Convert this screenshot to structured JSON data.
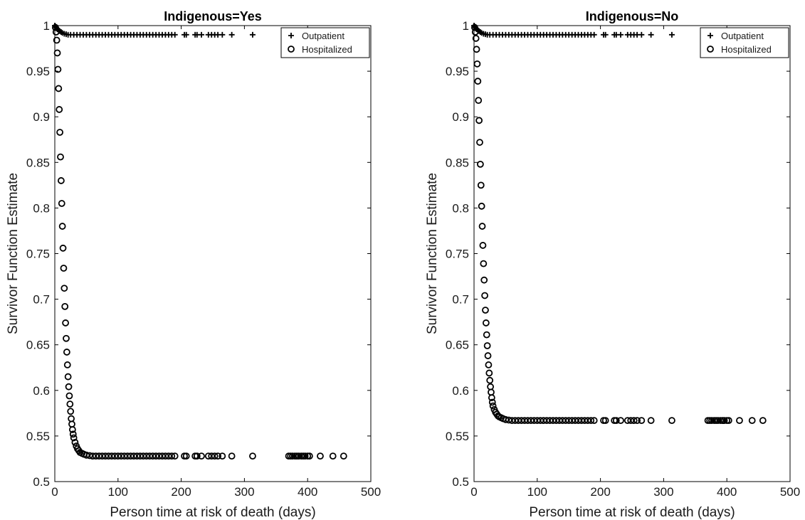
{
  "chart_data": [
    {
      "type": "scatter",
      "title": "Indigenous=Yes",
      "xlabel": "Person time at risk of death (days)",
      "ylabel": "Survivor Function Estimate",
      "xlim": [
        0,
        500
      ],
      "ylim": [
        0.5,
        1
      ],
      "xticks": [
        0,
        100,
        200,
        300,
        400,
        500
      ],
      "yticks": [
        0.5,
        0.55,
        0.6,
        0.65,
        0.7,
        0.75,
        0.8,
        0.85,
        0.9,
        0.95,
        1
      ],
      "xtick_labels": [
        "0",
        "100",
        "200",
        "300",
        "400",
        "500"
      ],
      "ytick_labels": [
        "0.5",
        "0.55",
        "0.6",
        "0.65",
        "0.7",
        "0.75",
        "0.8",
        "0.85",
        "0.9",
        "0.95",
        "1"
      ],
      "grid": false,
      "legend_position": "top-right",
      "series": [
        {
          "name": "Outpatient",
          "marker": "plus",
          "x": [
            0,
            1,
            2,
            3,
            4,
            6,
            8,
            10,
            12,
            15,
            18,
            21,
            25,
            30,
            35,
            40,
            45,
            50,
            55,
            60,
            65,
            70,
            75,
            80,
            85,
            90,
            95,
            100,
            105,
            110,
            115,
            120,
            125,
            130,
            135,
            140,
            145,
            150,
            155,
            160,
            165,
            170,
            175,
            180,
            185,
            190,
            205,
            208,
            222,
            225,
            232,
            243,
            248,
            253,
            258,
            265,
            280,
            313
          ],
          "y": [
            1,
            0.999,
            0.998,
            0.997,
            0.996,
            0.995,
            0.994,
            0.993,
            0.992,
            0.991,
            0.9905,
            0.99,
            0.99,
            0.99,
            0.99,
            0.99,
            0.99,
            0.99,
            0.99,
            0.99,
            0.99,
            0.99,
            0.99,
            0.99,
            0.99,
            0.99,
            0.99,
            0.99,
            0.99,
            0.99,
            0.99,
            0.99,
            0.99,
            0.99,
            0.99,
            0.99,
            0.99,
            0.99,
            0.99,
            0.99,
            0.99,
            0.99,
            0.99,
            0.99,
            0.99,
            0.99,
            0.99,
            0.99,
            0.99,
            0.99,
            0.99,
            0.99,
            0.99,
            0.99,
            0.99,
            0.99,
            0.99,
            0.99
          ]
        },
        {
          "name": "Hospitalized",
          "marker": "circle",
          "x": [
            1,
            2,
            3,
            4,
            5,
            6,
            7,
            8,
            9,
            10,
            11,
            12,
            13,
            14,
            15,
            16,
            17,
            18,
            19,
            20,
            21,
            22,
            23,
            24,
            25,
            26,
            27,
            28,
            29,
            30,
            32,
            34,
            36,
            38,
            40,
            43,
            46,
            50,
            55,
            60,
            65,
            70,
            75,
            80,
            85,
            90,
            95,
            100,
            105,
            110,
            115,
            120,
            125,
            130,
            135,
            140,
            145,
            150,
            155,
            160,
            165,
            170,
            175,
            180,
            185,
            190,
            205,
            208,
            222,
            225,
            232,
            243,
            248,
            253,
            258,
            265,
            280,
            313,
            370,
            373,
            376,
            380,
            383,
            386,
            390,
            393,
            396,
            400,
            403,
            420,
            440,
            457
          ],
          "y": [
            0.998,
            0.993,
            0.984,
            0.97,
            0.952,
            0.931,
            0.908,
            0.883,
            0.856,
            0.83,
            0.805,
            0.78,
            0.756,
            0.734,
            0.712,
            0.692,
            0.674,
            0.657,
            0.642,
            0.628,
            0.615,
            0.604,
            0.594,
            0.585,
            0.577,
            0.569,
            0.563,
            0.557,
            0.552,
            0.548,
            0.543,
            0.539,
            0.536,
            0.534,
            0.532,
            0.531,
            0.53,
            0.529,
            0.5285,
            0.528,
            0.528,
            0.528,
            0.528,
            0.528,
            0.528,
            0.528,
            0.528,
            0.528,
            0.528,
            0.528,
            0.528,
            0.528,
            0.528,
            0.528,
            0.528,
            0.528,
            0.528,
            0.528,
            0.528,
            0.528,
            0.528,
            0.528,
            0.528,
            0.528,
            0.528,
            0.528,
            0.528,
            0.528,
            0.528,
            0.528,
            0.528,
            0.528,
            0.528,
            0.528,
            0.528,
            0.528,
            0.528,
            0.528,
            0.528,
            0.528,
            0.528,
            0.528,
            0.528,
            0.528,
            0.528,
            0.528,
            0.528,
            0.528,
            0.528,
            0.528,
            0.528,
            0.528
          ]
        }
      ]
    },
    {
      "type": "scatter",
      "title": "Indigenous=No",
      "xlabel": "Person time at risk of death (days)",
      "ylabel": "Survivor Function Estimate",
      "xlim": [
        0,
        500
      ],
      "ylim": [
        0.5,
        1
      ],
      "xticks": [
        0,
        100,
        200,
        300,
        400,
        500
      ],
      "yticks": [
        0.5,
        0.55,
        0.6,
        0.65,
        0.7,
        0.75,
        0.8,
        0.85,
        0.9,
        0.95,
        1
      ],
      "xtick_labels": [
        "0",
        "100",
        "200",
        "300",
        "400",
        "500"
      ],
      "ytick_labels": [
        "0.5",
        "0.55",
        "0.6",
        "0.65",
        "0.7",
        "0.75",
        "0.8",
        "0.85",
        "0.9",
        "0.95",
        "1"
      ],
      "grid": false,
      "legend_position": "top-right",
      "series": [
        {
          "name": "Outpatient",
          "marker": "plus",
          "x": [
            0,
            1,
            2,
            3,
            4,
            6,
            8,
            10,
            12,
            15,
            18,
            21,
            25,
            30,
            35,
            40,
            45,
            50,
            55,
            60,
            65,
            70,
            75,
            80,
            85,
            90,
            95,
            100,
            105,
            110,
            115,
            120,
            125,
            130,
            135,
            140,
            145,
            150,
            155,
            160,
            165,
            170,
            175,
            180,
            185,
            190,
            205,
            208,
            222,
            225,
            232,
            243,
            248,
            253,
            258,
            265,
            280,
            313
          ],
          "y": [
            1,
            0.999,
            0.998,
            0.997,
            0.996,
            0.995,
            0.994,
            0.993,
            0.992,
            0.991,
            0.9905,
            0.99,
            0.99,
            0.99,
            0.99,
            0.99,
            0.99,
            0.99,
            0.99,
            0.99,
            0.99,
            0.99,
            0.99,
            0.99,
            0.99,
            0.99,
            0.99,
            0.99,
            0.99,
            0.99,
            0.99,
            0.99,
            0.99,
            0.99,
            0.99,
            0.99,
            0.99,
            0.99,
            0.99,
            0.99,
            0.99,
            0.99,
            0.99,
            0.99,
            0.99,
            0.99,
            0.99,
            0.99,
            0.99,
            0.99,
            0.99,
            0.99,
            0.99,
            0.99,
            0.99,
            0.99,
            0.99,
            0.99
          ]
        },
        {
          "name": "Hospitalized",
          "marker": "circle",
          "x": [
            1,
            2,
            3,
            4,
            5,
            6,
            7,
            8,
            9,
            10,
            11,
            12,
            13,
            14,
            15,
            16,
            17,
            18,
            19,
            20,
            21,
            22,
            23,
            24,
            25,
            26,
            27,
            28,
            29,
            30,
            32,
            34,
            36,
            38,
            40,
            43,
            46,
            50,
            55,
            60,
            65,
            70,
            75,
            80,
            85,
            90,
            95,
            100,
            105,
            110,
            115,
            120,
            125,
            130,
            135,
            140,
            145,
            150,
            155,
            160,
            165,
            170,
            175,
            180,
            185,
            190,
            205,
            208,
            222,
            225,
            232,
            243,
            248,
            253,
            258,
            265,
            280,
            313,
            370,
            373,
            376,
            380,
            383,
            386,
            390,
            393,
            396,
            400,
            403,
            420,
            440,
            457
          ],
          "y": [
            0.998,
            0.993,
            0.986,
            0.974,
            0.958,
            0.939,
            0.918,
            0.896,
            0.872,
            0.848,
            0.825,
            0.802,
            0.78,
            0.759,
            0.739,
            0.721,
            0.704,
            0.688,
            0.674,
            0.661,
            0.649,
            0.638,
            0.628,
            0.619,
            0.611,
            0.604,
            0.598,
            0.592,
            0.587,
            0.583,
            0.579,
            0.576,
            0.574,
            0.572,
            0.571,
            0.57,
            0.569,
            0.568,
            0.5675,
            0.567,
            0.567,
            0.567,
            0.567,
            0.567,
            0.567,
            0.567,
            0.567,
            0.567,
            0.567,
            0.567,
            0.567,
            0.567,
            0.567,
            0.567,
            0.567,
            0.567,
            0.567,
            0.567,
            0.567,
            0.567,
            0.567,
            0.567,
            0.567,
            0.567,
            0.567,
            0.567,
            0.567,
            0.567,
            0.567,
            0.567,
            0.567,
            0.567,
            0.567,
            0.567,
            0.567,
            0.567,
            0.567,
            0.567,
            0.567,
            0.567,
            0.567,
            0.567,
            0.567,
            0.567,
            0.567,
            0.567,
            0.567,
            0.567,
            0.567,
            0.567,
            0.567,
            0.567
          ]
        }
      ]
    }
  ]
}
